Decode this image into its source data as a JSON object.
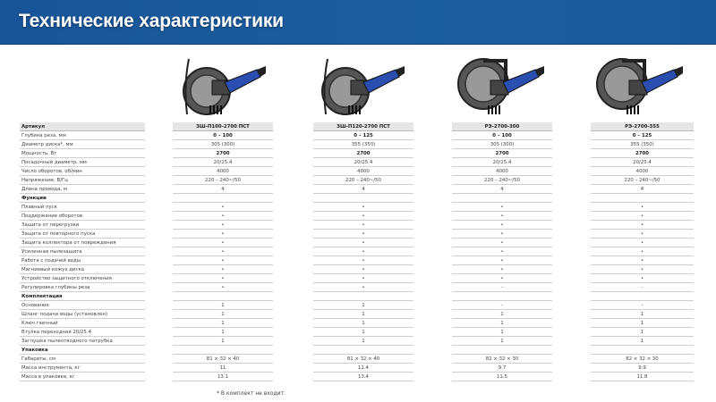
{
  "header": {
    "title": "Технические характеристики"
  },
  "products": [
    {
      "image": "saw-icon",
      "model": "ЗШ-П100-2700 ПСТ"
    },
    {
      "image": "saw-icon",
      "model": "ЗШ-П120-2700 ПСТ"
    },
    {
      "image": "saw-icon",
      "model": "РЭ-2700-300"
    },
    {
      "image": "saw-icon",
      "model": "РЭ-2700-355"
    }
  ],
  "colors": {
    "header_bg": "#1a5a9a",
    "accent_blue": "#2a4fb0"
  },
  "table": {
    "head_label": "Артикул",
    "rows": [
      {
        "label": "Глубина реза, мм",
        "bold": true,
        "values": [
          "0 – 100",
          "0 – 125",
          "0 – 100",
          "0 – 125"
        ]
      },
      {
        "label": "Диаметр диска*, мм",
        "values": [
          "305 (300)",
          "355 (350)",
          "305 (300)",
          "355 (350)"
        ]
      },
      {
        "label": "Мощность, Вт",
        "bold": true,
        "values": [
          "2700",
          "2700",
          "2700",
          "2700"
        ]
      },
      {
        "label": "Посадочный диаметр, мм",
        "values": [
          "20/25.4",
          "20/25.4",
          "20/25.4",
          "20/25.4"
        ]
      },
      {
        "label": "Число оборотов, об/мин",
        "values": [
          "4000",
          "4000",
          "4000",
          "4000"
        ]
      },
      {
        "label": "Напряжение, В/Гц",
        "values": [
          "220 – 240~/50",
          "220 – 240~/50",
          "220 – 240~/50",
          "220 – 240~/50"
        ]
      },
      {
        "label": "Длина провода, м",
        "values": [
          "4",
          "4",
          "4",
          "4"
        ]
      },
      {
        "label": "Функции",
        "section": true,
        "values": [
          "",
          "",
          "",
          ""
        ]
      },
      {
        "label": " Плавный пуск",
        "values": [
          "•",
          "•",
          "•",
          "•"
        ]
      },
      {
        "label": "Поддержание оборотов",
        "values": [
          "•",
          "•",
          "•",
          "•"
        ]
      },
      {
        "label": "Защита от перегрузки",
        "values": [
          "•",
          "•",
          "•",
          "•"
        ]
      },
      {
        "label": " Защита от повторного пуска",
        "values": [
          "•",
          "•",
          "•",
          "•"
        ]
      },
      {
        "label": "Защита коллектора от повреждения",
        "values": [
          "•",
          "•",
          "•",
          "•"
        ]
      },
      {
        "label": "Усиленная пылезащита",
        "values": [
          "•",
          "•",
          "•",
          "•"
        ]
      },
      {
        "label": "Работа с подачей воды",
        "values": [
          "•",
          "•",
          "•",
          "•"
        ]
      },
      {
        "label": "Магниевый кожух диска",
        "values": [
          "•",
          "•",
          "•",
          "•"
        ]
      },
      {
        "label": "Устройство защитного отключения",
        "values": [
          "•",
          "•",
          "•",
          "•"
        ]
      },
      {
        "label": "Регулировка глубины реза",
        "values": [
          "•",
          "•",
          "-",
          "-"
        ]
      },
      {
        "label": "Комплектация",
        "section": true,
        "values": [
          "",
          "",
          "",
          ""
        ]
      },
      {
        "label": "Основание",
        "values": [
          "1",
          "1",
          "-",
          "-"
        ]
      },
      {
        "label": "Шланг подачи воды (установлен)",
        "values": [
          "1",
          "1",
          "1",
          "1"
        ]
      },
      {
        "label": "Ключ гаечный",
        "values": [
          "1",
          "1",
          "1",
          "1"
        ]
      },
      {
        "label": "Втулка переходная 20/25.4",
        "values": [
          "1",
          "1",
          "1",
          "1"
        ]
      },
      {
        "label": "Заглушка пылеотводного патрубка",
        "values": [
          "1",
          "1",
          "1",
          "1"
        ]
      },
      {
        "label": "Упаковка",
        "section": true,
        "values": [
          "",
          "",
          "",
          ""
        ]
      },
      {
        "label": "Габариты, см",
        "values": [
          "81 × 32 × 40",
          "81 × 32 × 40",
          "82 × 32 × 30",
          "82 × 32 × 30"
        ]
      },
      {
        "label": "Масса инструмента, кг",
        "values": [
          "11",
          "11.4",
          "9.7",
          "9.9"
        ]
      },
      {
        "label": "Масса в упаковке, кг",
        "values": [
          "13.1",
          "13.4",
          "11.5",
          "11.8"
        ]
      }
    ]
  },
  "footnote": "* В комплект не входит."
}
